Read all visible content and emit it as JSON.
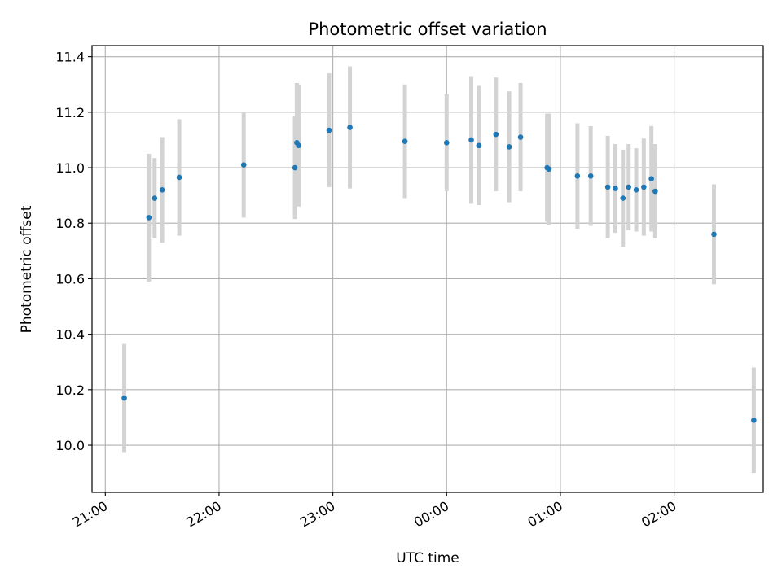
{
  "chart_data": {
    "type": "scatter",
    "title": "Photometric offset variation",
    "xlabel": "UTC time",
    "ylabel": "Photometric offset",
    "grid": true,
    "x_ticks": [
      "21:00",
      "22:00",
      "23:00",
      "00:00",
      "01:00",
      "02:00"
    ],
    "y_ticks": [
      "10.0",
      "10.2",
      "10.4",
      "10.6",
      "10.8",
      "11.0",
      "11.2",
      "11.4"
    ],
    "ylim": [
      9.83,
      11.44
    ],
    "xlim": [
      "20:53",
      "02:47"
    ],
    "colors": {
      "point": "#1f77b4",
      "errorbar": "#d3d3d3",
      "grid": "#b0b0b0"
    },
    "series": [
      {
        "points": [
          {
            "x": "21:10",
            "y": 10.17,
            "err": 0.195
          },
          {
            "x": "21:23",
            "y": 10.82,
            "err": 0.23
          },
          {
            "x": "21:26",
            "y": 10.89,
            "err": 0.145
          },
          {
            "x": "21:30",
            "y": 10.92,
            "err": 0.19
          },
          {
            "x": "21:39",
            "y": 10.965,
            "err": 0.21
          },
          {
            "x": "22:13",
            "y": 11.01,
            "err": 0.19
          },
          {
            "x": "22:40",
            "y": 11.0,
            "err": 0.185
          },
          {
            "x": "22:41",
            "y": 11.09,
            "err": 0.215
          },
          {
            "x": "22:42",
            "y": 11.08,
            "err": 0.22
          },
          {
            "x": "22:58",
            "y": 11.135,
            "err": 0.205
          },
          {
            "x": "23:09",
            "y": 11.145,
            "err": 0.22
          },
          {
            "x": "23:38",
            "y": 11.095,
            "err": 0.205
          },
          {
            "x": "00:00",
            "y": 11.09,
            "err": 0.175
          },
          {
            "x": "00:13",
            "y": 11.1,
            "err": 0.23
          },
          {
            "x": "00:17",
            "y": 11.08,
            "err": 0.215
          },
          {
            "x": "00:26",
            "y": 11.12,
            "err": 0.205
          },
          {
            "x": "00:33",
            "y": 11.075,
            "err": 0.2
          },
          {
            "x": "00:39",
            "y": 11.11,
            "err": 0.195
          },
          {
            "x": "00:53",
            "y": 11.0,
            "err": 0.195
          },
          {
            "x": "00:54",
            "y": 10.995,
            "err": 0.2
          },
          {
            "x": "01:09",
            "y": 10.97,
            "err": 0.19
          },
          {
            "x": "01:16",
            "y": 10.97,
            "err": 0.18
          },
          {
            "x": "01:25",
            "y": 10.93,
            "err": 0.185
          },
          {
            "x": "01:29",
            "y": 10.925,
            "err": 0.16
          },
          {
            "x": "01:33",
            "y": 10.89,
            "err": 0.175
          },
          {
            "x": "01:36",
            "y": 10.93,
            "err": 0.155
          },
          {
            "x": "01:40",
            "y": 10.92,
            "err": 0.15
          },
          {
            "x": "01:44",
            "y": 10.93,
            "err": 0.175
          },
          {
            "x": "01:48",
            "y": 10.96,
            "err": 0.19
          },
          {
            "x": "01:50",
            "y": 10.915,
            "err": 0.17
          },
          {
            "x": "02:21",
            "y": 10.76,
            "err": 0.18
          },
          {
            "x": "02:42",
            "y": 10.09,
            "err": 0.19
          }
        ]
      }
    ]
  }
}
